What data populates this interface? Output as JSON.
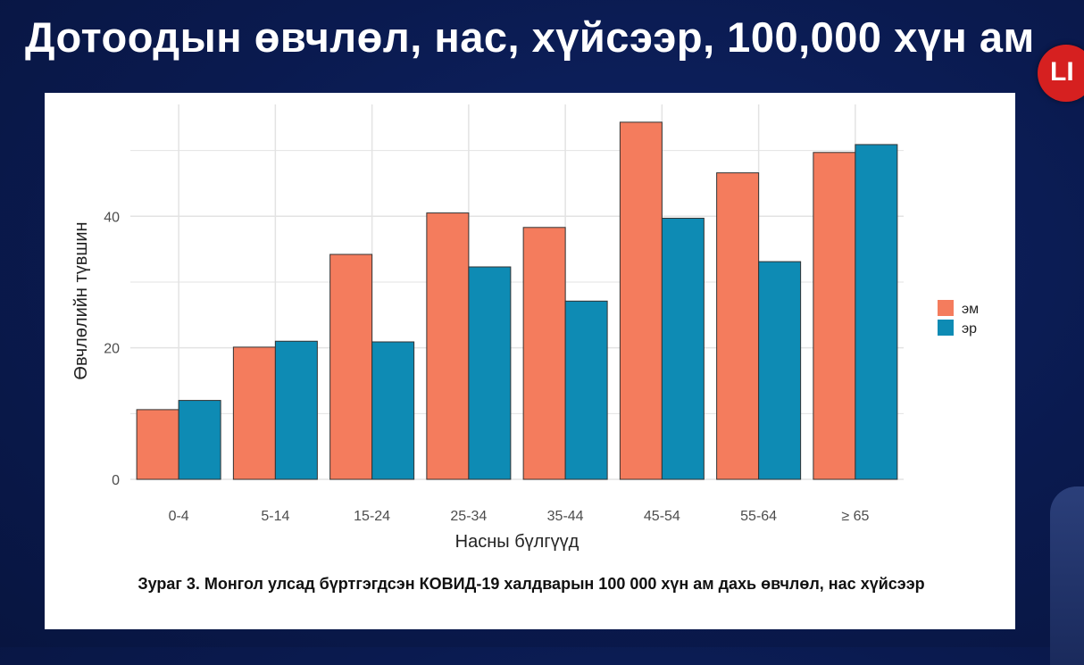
{
  "header": {
    "title": "Дотоодын өвчлөл, нас, хүйсээр, 100,000 хүн ам"
  },
  "badge": {
    "label": "LI"
  },
  "colors": {
    "em": "#f47c5d",
    "er": "#0e8bb4",
    "grid": "#e3e3e3",
    "axis_text": "#4d4d4d"
  },
  "chart_data": {
    "type": "bar",
    "categories": [
      "0-4",
      "5-14",
      "15-24",
      "25-34",
      "35-44",
      "45-54",
      "55-64",
      "≥ 65"
    ],
    "series": [
      {
        "name": "эм",
        "values": [
          10.6,
          20.1,
          34.2,
          40.5,
          38.3,
          54.3,
          46.6,
          49.7
        ]
      },
      {
        "name": "эр",
        "values": [
          12.0,
          21.0,
          20.9,
          32.3,
          27.1,
          39.7,
          33.1,
          50.9
        ]
      }
    ],
    "xlabel": "Насны бүлгүүд",
    "ylabel": "Өвчлөлийн түвшин",
    "ylim": [
      0,
      57
    ],
    "yticks": [
      0,
      20,
      40
    ],
    "grid": true,
    "legend": "right",
    "caption": "Зураг 3. Монгол улсад бүртгэгдсэн КОВИД-19 халдварын 100 000 хүн ам дахь өвчлөл, нас хүйсээр"
  }
}
